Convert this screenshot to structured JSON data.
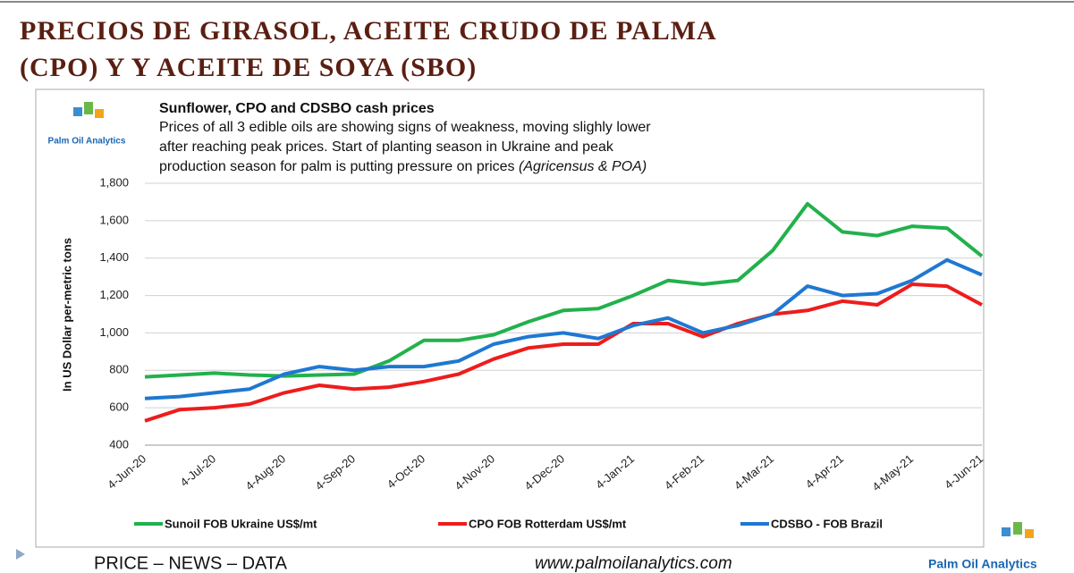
{
  "slide": {
    "title": [
      "PRECIOS DE GIRASOL, ACEITE CRUDO DE PALMA",
      "(CPO) Y  Y ACEITE DE SOYA (SBO)"
    ],
    "footer": [
      "PRICE – NEWS – DATA",
      "www.palmoilanalytics.com",
      "Palm Oil Analytics"
    ]
  },
  "chart_data": {
    "type": "line",
    "logo": "Palm Oil Analytics",
    "title": "Sunflower, CPO and CDSBO cash prices",
    "subtitle": [
      "Prices of all 3 edible oils are showing signs of weakness, moving slighly lower",
      "after reaching peak prices. Start of planting season in Ukraine and peak",
      "production season for palm is putting pressure on prices "
    ],
    "source": "(Agricensus & POA)",
    "ylabel": "In US Dollar per-metric tons",
    "categories": [
      "4-Jun-20",
      null,
      "4-Jul-20",
      null,
      "4-Aug-20",
      null,
      "4-Sep-20",
      null,
      "4-Oct-20",
      null,
      "4-Nov-20",
      null,
      "4-Dec-20",
      null,
      "4-Jan-21",
      null,
      "4-Feb-21",
      null,
      "4-Mar-21",
      null,
      "4-Apr-21",
      null,
      "4-May-21",
      null,
      "4-Jun-21"
    ],
    "series": [
      {
        "name": "Sunoil FOB Ukraine US$/mt",
        "color": "#22b14c",
        "values": [
          765,
          775,
          785,
          775,
          770,
          775,
          780,
          850,
          960,
          960,
          990,
          1060,
          1120,
          1130,
          1200,
          1280,
          1260,
          1280,
          1440,
          1690,
          1540,
          1520,
          1570,
          1560,
          1410
        ]
      },
      {
        "name": "CPO FOB Rotterdam US$/mt",
        "color": "#ee1c1c",
        "values": [
          530,
          590,
          600,
          620,
          680,
          720,
          700,
          710,
          740,
          780,
          860,
          920,
          940,
          940,
          1050,
          1050,
          980,
          1050,
          1100,
          1120,
          1170,
          1150,
          1260,
          1250,
          1150
        ]
      },
      {
        "name": "CDSBO - FOB Brazil",
        "color": "#1f78d1",
        "values": [
          650,
          660,
          680,
          700,
          780,
          820,
          800,
          820,
          820,
          850,
          940,
          980,
          1000,
          970,
          1040,
          1080,
          1000,
          1040,
          1100,
          1250,
          1200,
          1210,
          1280,
          1390,
          1310
        ]
      }
    ],
    "ylim": [
      400,
      1800
    ],
    "yticks": [
      400,
      600,
      800,
      {
        "value": 1000,
        "label": "1,000"
      },
      {
        "value": 1200,
        "label": "1,200"
      },
      {
        "value": 1400,
        "label": "1,400"
      },
      {
        "value": 1600,
        "label": "1,600"
      },
      {
        "value": 1800,
        "label": "1,800"
      }
    ],
    "grid": true
  }
}
